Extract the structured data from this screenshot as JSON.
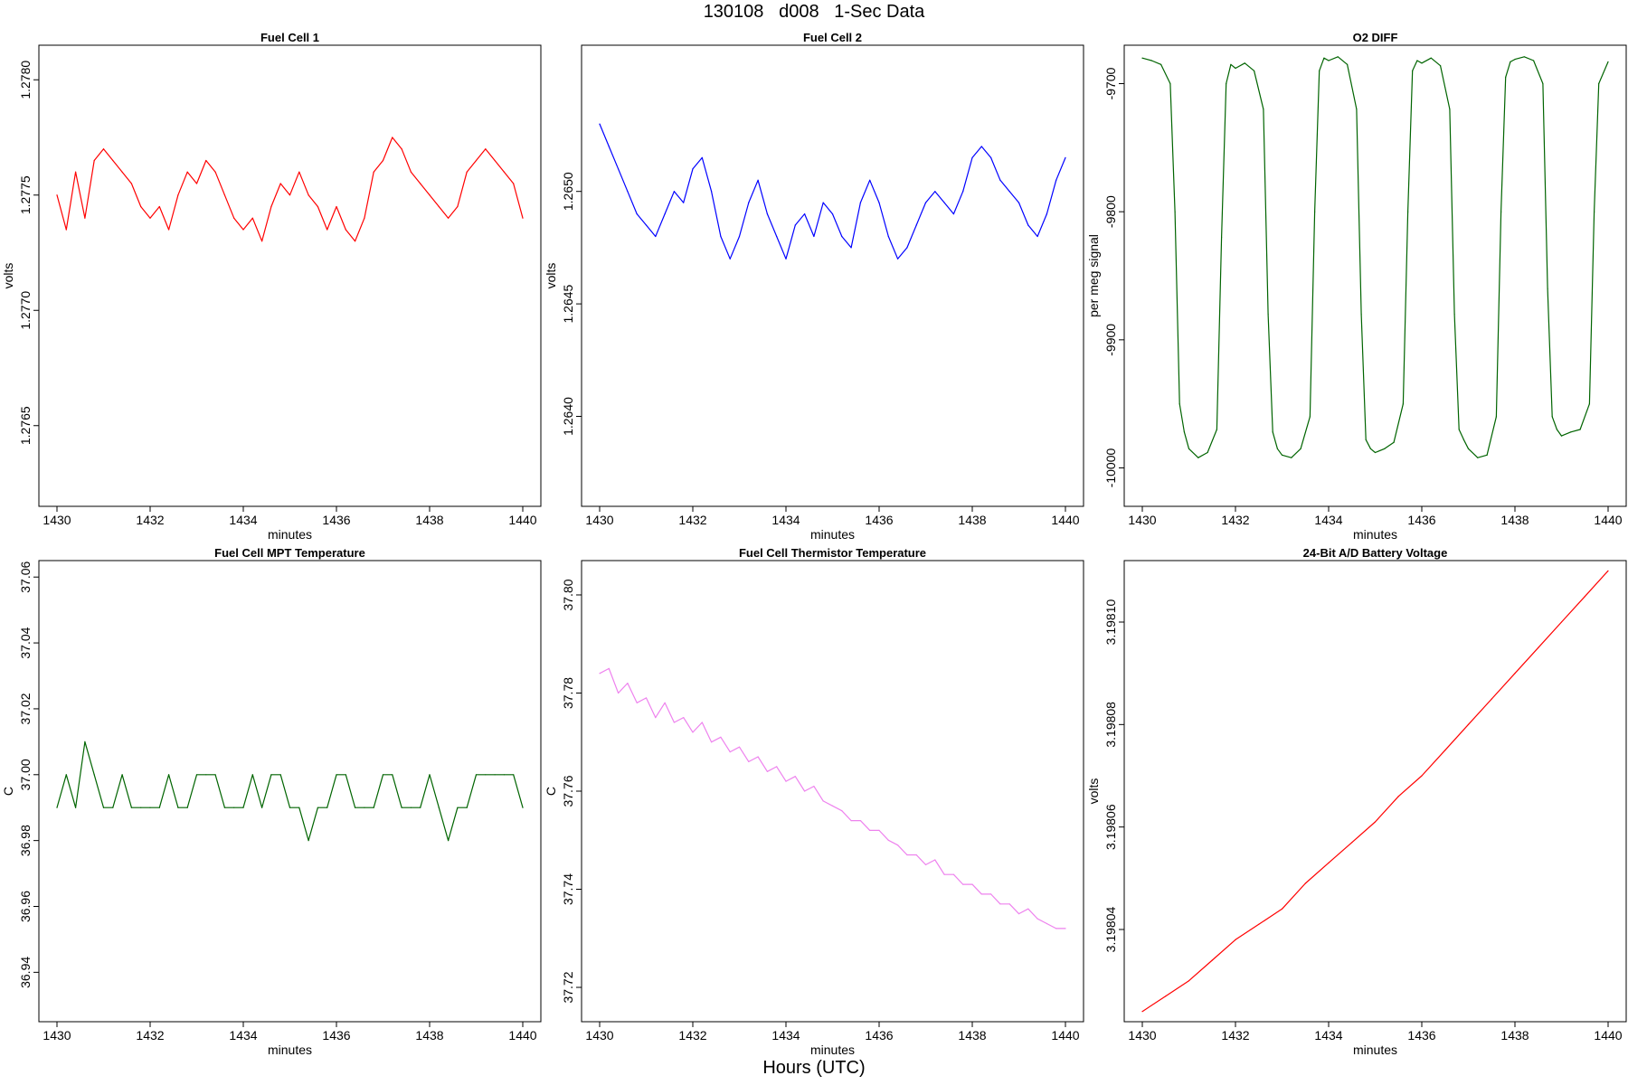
{
  "header": {
    "title": "130108   d008   1-Sec Data",
    "x_caption": "Hours (UTC)"
  },
  "chart_data": [
    {
      "id": "fc1",
      "type": "line",
      "title": "Fuel Cell 1",
      "xlabel": "minutes",
      "ylabel": "volts",
      "color": "#ff0000",
      "xlim": [
        1430,
        1440
      ],
      "ylim": [
        1.27615,
        1.27815
      ],
      "xticks": [
        1430,
        1432,
        1434,
        1436,
        1438,
        1440
      ],
      "xtick_labels": [
        "1430",
        "1432",
        "1434",
        "1436",
        "1438",
        "1440"
      ],
      "yticks": [
        1.2765,
        1.277,
        1.2775,
        1.278
      ],
      "ytick_labels": [
        "1.2765",
        "1.2770",
        "1.2775",
        "1.2780"
      ],
      "series": [
        {
          "name": "Fuel Cell 1",
          "x": [
            1430.0,
            1430.2,
            1430.4,
            1430.6,
            1430.8,
            1431.0,
            1431.2,
            1431.4,
            1431.6,
            1431.8,
            1432.0,
            1432.2,
            1432.4,
            1432.6,
            1432.8,
            1433.0,
            1433.2,
            1433.4,
            1433.6,
            1433.8,
            1434.0,
            1434.2,
            1434.4,
            1434.6,
            1434.8,
            1435.0,
            1435.2,
            1435.4,
            1435.6,
            1435.8,
            1436.0,
            1436.2,
            1436.4,
            1436.6,
            1436.8,
            1437.0,
            1437.2,
            1437.4,
            1437.6,
            1437.8,
            1438.0,
            1438.2,
            1438.4,
            1438.6,
            1438.8,
            1439.0,
            1439.2,
            1439.4,
            1439.6,
            1439.8,
            1440.0
          ],
          "values": [
            1.2775,
            1.27735,
            1.2776,
            1.2774,
            1.27765,
            1.2777,
            1.27765,
            1.2776,
            1.27755,
            1.27745,
            1.2774,
            1.27745,
            1.27735,
            1.2775,
            1.2776,
            1.27755,
            1.27765,
            1.2776,
            1.2775,
            1.2774,
            1.27735,
            1.2774,
            1.2773,
            1.27745,
            1.27755,
            1.2775,
            1.2776,
            1.2775,
            1.27745,
            1.27735,
            1.27745,
            1.27735,
            1.2773,
            1.2774,
            1.2776,
            1.27765,
            1.27775,
            1.2777,
            1.2776,
            1.27755,
            1.2775,
            1.27745,
            1.2774,
            1.27745,
            1.2776,
            1.27765,
            1.2777,
            1.27765,
            1.2776,
            1.27755,
            1.2774
          ]
        }
      ]
    },
    {
      "id": "fc2",
      "type": "line",
      "title": "Fuel Cell 2",
      "xlabel": "minutes",
      "ylabel": "volts",
      "color": "#0000ff",
      "xlim": [
        1430,
        1440
      ],
      "ylim": [
        1.2636,
        1.26565
      ],
      "xticks": [
        1430,
        1432,
        1434,
        1436,
        1438,
        1440
      ],
      "xtick_labels": [
        "1430",
        "1432",
        "1434",
        "1436",
        "1438",
        "1440"
      ],
      "yticks": [
        1.264,
        1.2645,
        1.265
      ],
      "ytick_labels": [
        "1.2640",
        "1.2645",
        "1.2650"
      ],
      "series": [
        {
          "name": "Fuel Cell 2",
          "x": [
            1430.0,
            1430.2,
            1430.4,
            1430.6,
            1430.8,
            1431.0,
            1431.2,
            1431.4,
            1431.6,
            1431.8,
            1432.0,
            1432.2,
            1432.4,
            1432.6,
            1432.8,
            1433.0,
            1433.2,
            1433.4,
            1433.6,
            1433.8,
            1434.0,
            1434.2,
            1434.4,
            1434.6,
            1434.8,
            1435.0,
            1435.2,
            1435.4,
            1435.6,
            1435.8,
            1436.0,
            1436.2,
            1436.4,
            1436.6,
            1436.8,
            1437.0,
            1437.2,
            1437.4,
            1437.6,
            1437.8,
            1438.0,
            1438.2,
            1438.4,
            1438.6,
            1438.8,
            1439.0,
            1439.2,
            1439.4,
            1439.6,
            1439.8,
            1440.0
          ],
          "values": [
            1.2653,
            1.2652,
            1.2651,
            1.265,
            1.2649,
            1.26485,
            1.2648,
            1.2649,
            1.265,
            1.26495,
            1.2651,
            1.26515,
            1.265,
            1.2648,
            1.2647,
            1.2648,
            1.26495,
            1.26505,
            1.2649,
            1.2648,
            1.2647,
            1.26485,
            1.2649,
            1.2648,
            1.26495,
            1.2649,
            1.2648,
            1.26475,
            1.26495,
            1.26505,
            1.26495,
            1.2648,
            1.2647,
            1.26475,
            1.26485,
            1.26495,
            1.265,
            1.26495,
            1.2649,
            1.265,
            1.26515,
            1.2652,
            1.26515,
            1.26505,
            1.265,
            1.26495,
            1.26485,
            1.2648,
            1.2649,
            1.26505,
            1.26515
          ]
        }
      ]
    },
    {
      "id": "o2",
      "type": "line",
      "title": "O2 DIFF",
      "xlabel": "minutes",
      "ylabel": "per meg signal",
      "color": "#006400",
      "xlim": [
        1430,
        1440
      ],
      "ylim": [
        -10030,
        -9670
      ],
      "xticks": [
        1430,
        1432,
        1434,
        1436,
        1438,
        1440
      ],
      "xtick_labels": [
        "1430",
        "1432",
        "1434",
        "1436",
        "1438",
        "1440"
      ],
      "yticks": [
        -10000,
        -9900,
        -9800,
        -9700
      ],
      "ytick_labels": [
        "-10000",
        "-9900",
        "-9800",
        "-9700"
      ],
      "series": [
        {
          "name": "O2 DIFF",
          "x": [
            1430.0,
            1430.2,
            1430.4,
            1430.6,
            1430.7,
            1430.8,
            1430.9,
            1431.0,
            1431.2,
            1431.4,
            1431.6,
            1431.7,
            1431.8,
            1431.9,
            1432.0,
            1432.2,
            1432.4,
            1432.6,
            1432.7,
            1432.8,
            1432.9,
            1433.0,
            1433.2,
            1433.4,
            1433.6,
            1433.7,
            1433.8,
            1433.9,
            1434.0,
            1434.2,
            1434.4,
            1434.6,
            1434.7,
            1434.8,
            1434.9,
            1435.0,
            1435.2,
            1435.4,
            1435.6,
            1435.7,
            1435.8,
            1435.9,
            1436.0,
            1436.2,
            1436.4,
            1436.6,
            1436.7,
            1436.8,
            1436.9,
            1437.0,
            1437.2,
            1437.4,
            1437.6,
            1437.7,
            1437.8,
            1437.9,
            1438.0,
            1438.2,
            1438.4,
            1438.6,
            1438.7,
            1438.8,
            1438.9,
            1439.0,
            1439.2,
            1439.4,
            1439.6,
            1439.7,
            1439.8,
            1440.0
          ],
          "values": [
            -9680,
            -9682,
            -9685,
            -9700,
            -9800,
            -9950,
            -9972,
            -9985,
            -9992,
            -9988,
            -9970,
            -9820,
            -9700,
            -9685,
            -9688,
            -9684,
            -9690,
            -9720,
            -9880,
            -9972,
            -9985,
            -9990,
            -9992,
            -9985,
            -9960,
            -9800,
            -9690,
            -9680,
            -9682,
            -9679,
            -9685,
            -9720,
            -9880,
            -9978,
            -9985,
            -9988,
            -9985,
            -9980,
            -9950,
            -9800,
            -9690,
            -9682,
            -9684,
            -9680,
            -9686,
            -9720,
            -9880,
            -9970,
            -9978,
            -9985,
            -9992,
            -9990,
            -9960,
            -9800,
            -9695,
            -9683,
            -9681,
            -9679,
            -9682,
            -9700,
            -9860,
            -9960,
            -9970,
            -9975,
            -9972,
            -9970,
            -9950,
            -9800,
            -9700,
            -9683
          ]
        }
      ]
    },
    {
      "id": "mpt",
      "type": "line",
      "title": "Fuel Cell MPT Temperature",
      "xlabel": "minutes",
      "ylabel": "C",
      "color": "#006400",
      "xlim": [
        1430,
        1440
      ],
      "ylim": [
        36.925,
        37.065
      ],
      "xticks": [
        1430,
        1432,
        1434,
        1436,
        1438,
        1440
      ],
      "xtick_labels": [
        "1430",
        "1432",
        "1434",
        "1436",
        "1438",
        "1440"
      ],
      "yticks": [
        36.94,
        36.96,
        36.98,
        37.0,
        37.02,
        37.04,
        37.06
      ],
      "ytick_labels": [
        "36.94",
        "36.96",
        "36.98",
        "37.00",
        "37.02",
        "37.04",
        "37.06"
      ],
      "series": [
        {
          "name": "MPT Temperature",
          "x": [
            1430.0,
            1430.2,
            1430.4,
            1430.6,
            1430.8,
            1431.0,
            1431.2,
            1431.4,
            1431.6,
            1431.8,
            1432.0,
            1432.2,
            1432.4,
            1432.6,
            1432.8,
            1433.0,
            1433.2,
            1433.4,
            1433.6,
            1433.8,
            1434.0,
            1434.2,
            1434.4,
            1434.6,
            1434.8,
            1435.0,
            1435.2,
            1435.4,
            1435.6,
            1435.8,
            1436.0,
            1436.2,
            1436.4,
            1436.6,
            1436.8,
            1437.0,
            1437.2,
            1437.4,
            1437.6,
            1437.8,
            1438.0,
            1438.2,
            1438.4,
            1438.6,
            1438.8,
            1439.0,
            1439.2,
            1439.4,
            1439.6,
            1439.8,
            1440.0
          ],
          "values": [
            36.99,
            37.0,
            36.99,
            37.01,
            37.0,
            36.99,
            36.99,
            37.0,
            36.99,
            36.99,
            36.99,
            36.99,
            37.0,
            36.99,
            36.99,
            37.0,
            37.0,
            37.0,
            36.99,
            36.99,
            36.99,
            37.0,
            36.99,
            37.0,
            37.0,
            36.99,
            36.99,
            36.98,
            36.99,
            36.99,
            37.0,
            37.0,
            36.99,
            36.99,
            36.99,
            37.0,
            37.0,
            36.99,
            36.99,
            36.99,
            37.0,
            36.99,
            36.98,
            36.99,
            36.99,
            37.0,
            37.0,
            37.0,
            37.0,
            37.0,
            36.99
          ]
        }
      ]
    },
    {
      "id": "therm",
      "type": "line",
      "title": "Fuel Cell Thermistor Temperature",
      "xlabel": "minutes",
      "ylabel": "C",
      "color": "#ee82ee",
      "xlim": [
        1430,
        1440
      ],
      "ylim": [
        37.713,
        37.807
      ],
      "xticks": [
        1430,
        1432,
        1434,
        1436,
        1438,
        1440
      ],
      "xtick_labels": [
        "1430",
        "1432",
        "1434",
        "1436",
        "1438",
        "1440"
      ],
      "yticks": [
        37.72,
        37.74,
        37.76,
        37.78,
        37.8
      ],
      "ytick_labels": [
        "37.72",
        "37.74",
        "37.76",
        "37.78",
        "37.80"
      ],
      "series": [
        {
          "name": "Thermistor Temperature",
          "x": [
            1430.0,
            1430.2,
            1430.4,
            1430.6,
            1430.8,
            1431.0,
            1431.2,
            1431.4,
            1431.6,
            1431.8,
            1432.0,
            1432.2,
            1432.4,
            1432.6,
            1432.8,
            1433.0,
            1433.2,
            1433.4,
            1433.6,
            1433.8,
            1434.0,
            1434.2,
            1434.4,
            1434.6,
            1434.8,
            1435.0,
            1435.2,
            1435.4,
            1435.6,
            1435.8,
            1436.0,
            1436.2,
            1436.4,
            1436.6,
            1436.8,
            1437.0,
            1437.2,
            1437.4,
            1437.6,
            1437.8,
            1438.0,
            1438.2,
            1438.4,
            1438.6,
            1438.8,
            1439.0,
            1439.2,
            1439.4,
            1439.6,
            1439.8,
            1440.0
          ],
          "values": [
            37.784,
            37.785,
            37.78,
            37.782,
            37.778,
            37.779,
            37.775,
            37.778,
            37.774,
            37.775,
            37.772,
            37.774,
            37.77,
            37.771,
            37.768,
            37.769,
            37.766,
            37.767,
            37.764,
            37.765,
            37.762,
            37.763,
            37.76,
            37.761,
            37.758,
            37.757,
            37.756,
            37.754,
            37.754,
            37.752,
            37.752,
            37.75,
            37.749,
            37.747,
            37.747,
            37.745,
            37.746,
            37.743,
            37.743,
            37.741,
            37.741,
            37.739,
            37.739,
            37.737,
            37.737,
            37.735,
            37.736,
            37.734,
            37.733,
            37.732,
            37.732
          ]
        }
      ]
    },
    {
      "id": "batt",
      "type": "line",
      "title": "24-Bit A/D Battery Voltage",
      "xlabel": "minutes",
      "ylabel": "volts",
      "color": "#ff0000",
      "xlim": [
        1430,
        1440
      ],
      "ylim": [
        3.198022,
        3.198112
      ],
      "xticks": [
        1430,
        1432,
        1434,
        1436,
        1438,
        1440
      ],
      "xtick_labels": [
        "1430",
        "1432",
        "1434",
        "1436",
        "1438",
        "1440"
      ],
      "yticks": [
        3.19804,
        3.19806,
        3.19808,
        3.1981
      ],
      "ytick_labels": [
        "3.19804",
        "3.19806",
        "3.19808",
        "3.19810"
      ],
      "series": [
        {
          "name": "Battery Voltage",
          "x": [
            1430.0,
            1430.5,
            1431.0,
            1431.5,
            1432.0,
            1432.5,
            1433.0,
            1433.5,
            1434.0,
            1434.5,
            1435.0,
            1435.5,
            1436.0,
            1436.5,
            1437.0,
            1437.5,
            1438.0,
            1438.5,
            1439.0,
            1439.5,
            1440.0
          ],
          "values": [
            3.198024,
            3.198027,
            3.19803,
            3.198034,
            3.198038,
            3.198041,
            3.198044,
            3.198049,
            3.198053,
            3.198057,
            3.198061,
            3.198066,
            3.19807,
            3.198075,
            3.19808,
            3.198085,
            3.19809,
            3.198095,
            3.1981,
            3.198105,
            3.19811
          ]
        }
      ]
    }
  ]
}
